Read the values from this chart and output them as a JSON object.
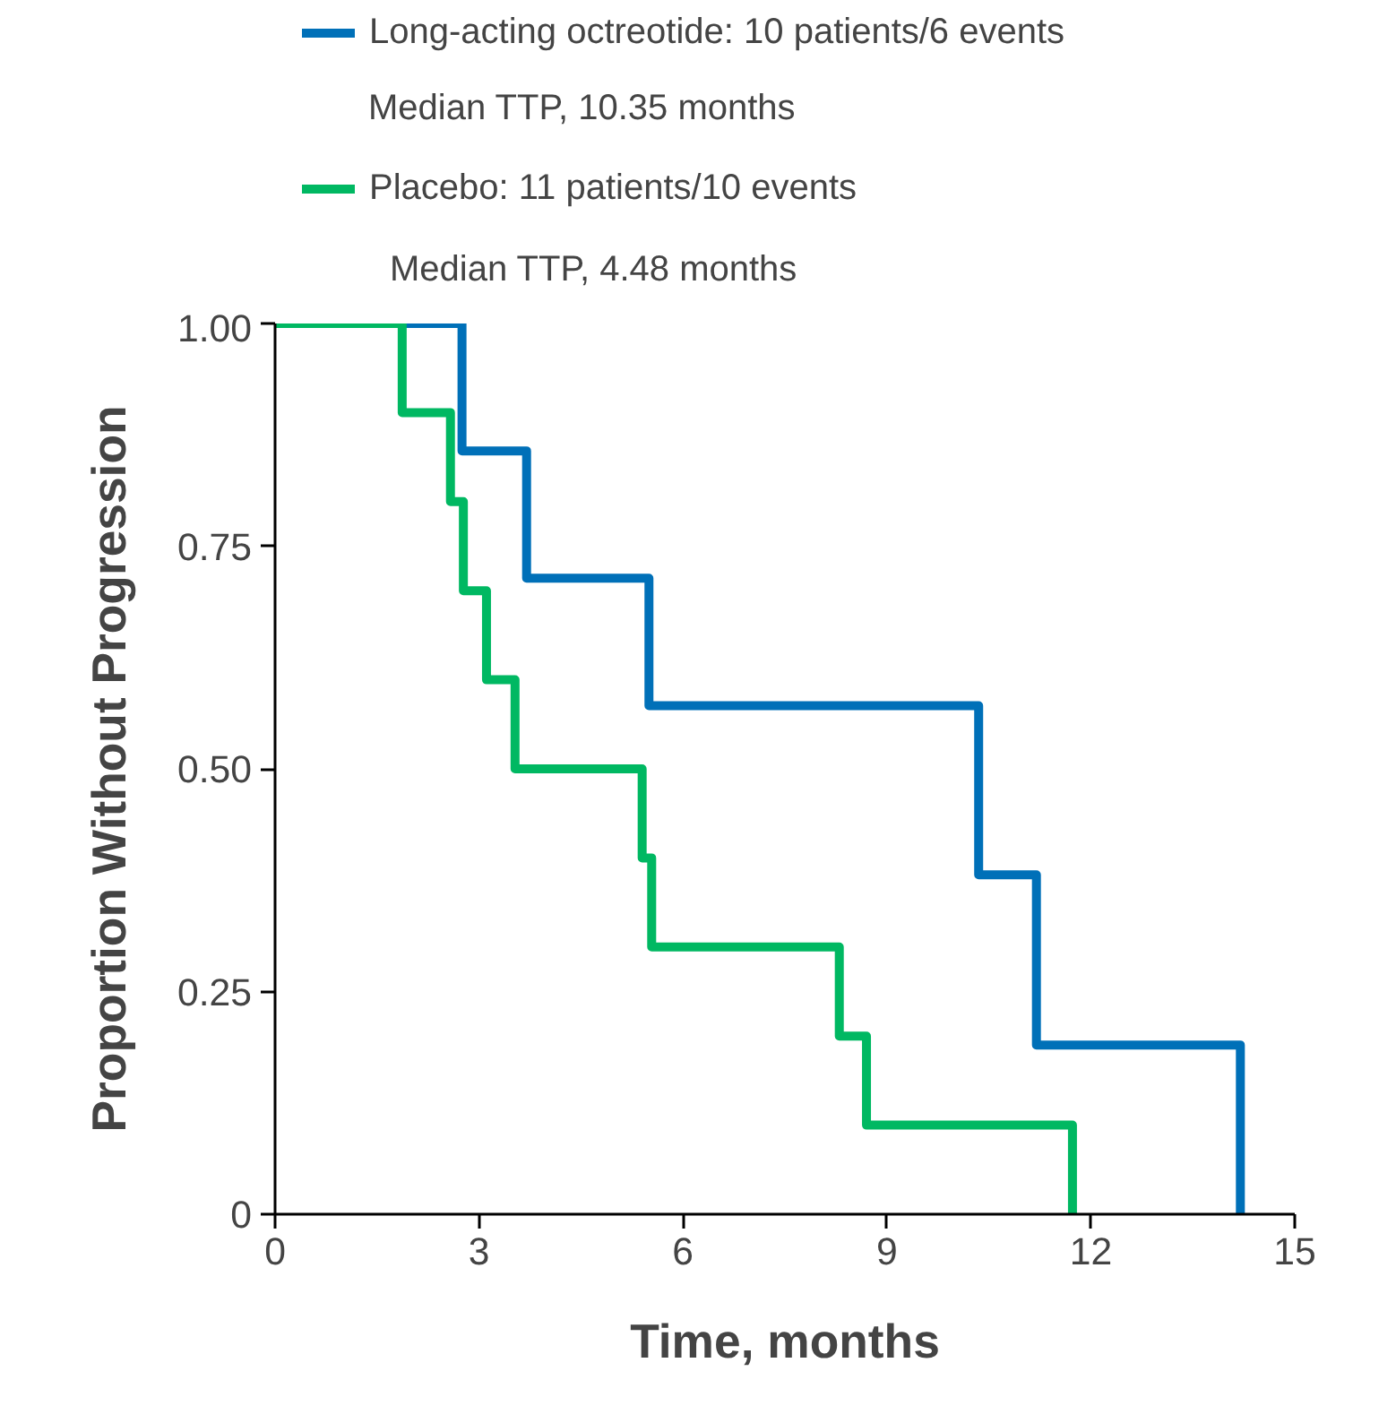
{
  "chart_data": {
    "type": "step",
    "xlabel": "Time, months",
    "ylabel": "Proportion Without Progression",
    "series": [
      {
        "name": "Long-acting octreotide: 10 patients/6 events",
        "color": "#0070b8",
        "x": [
          0,
          2.75,
          3.7,
          5.5,
          10.35,
          11.2,
          14.2
        ],
        "values": [
          1.0,
          0.857,
          0.714,
          0.571,
          0.381,
          0.19,
          0
        ]
      },
      {
        "name": "Placebo: 11 patients/10 events",
        "color": "#00b862",
        "x": [
          0,
          1.87,
          2.58,
          2.77,
          3.11,
          3.53,
          5.4,
          5.54,
          8.3,
          8.7,
          11.73
        ],
        "values": [
          1.0,
          0.9,
          0.8,
          0.7,
          0.6,
          0.5,
          0.4,
          0.3,
          0.2,
          0.1,
          0
        ]
      }
    ],
    "annotations": [
      "Median TTP, 10.35 months",
      "Median TTP, 4.48 months"
    ],
    "xlim": [
      0,
      15
    ],
    "ylim": [
      0,
      1
    ],
    "xticks": [
      0,
      3,
      6,
      9,
      12,
      15
    ],
    "yticks": [
      {
        "value": 0,
        "label": "0"
      },
      {
        "value": 0.25,
        "label": "0.25"
      },
      {
        "value": 0.5,
        "label": "0.50"
      },
      {
        "value": 0.75,
        "label": "0.75"
      },
      {
        "value": 1.0,
        "label": "1.00"
      }
    ],
    "grid": false,
    "legend": "top"
  }
}
